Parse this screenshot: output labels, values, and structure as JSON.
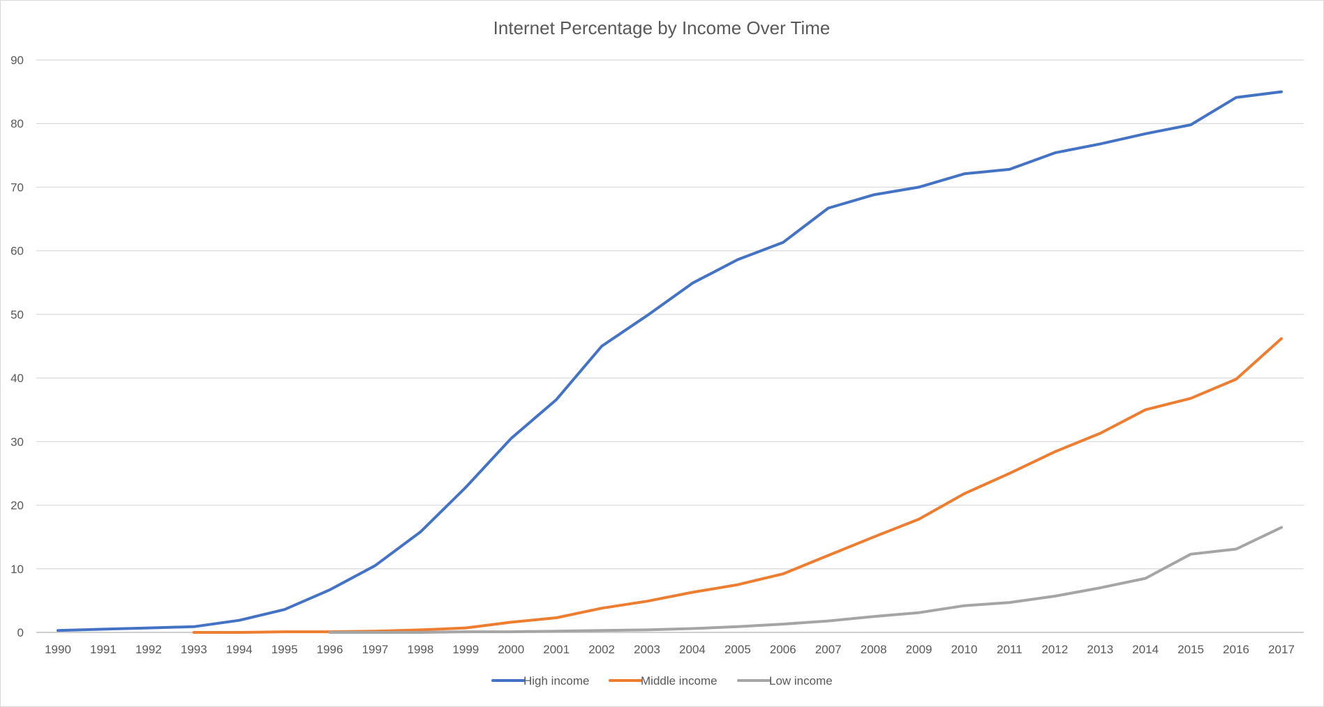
{
  "chart_data": {
    "type": "line",
    "title": "Internet Percentage by Income Over Time",
    "xlabel": "",
    "ylabel": "",
    "ylim": [
      0,
      90
    ],
    "yticks": [
      0,
      10,
      20,
      30,
      40,
      50,
      60,
      70,
      80,
      90
    ],
    "grid": true,
    "legend_position": "bottom",
    "categories": [
      "1990",
      "1991",
      "1992",
      "1993",
      "1994",
      "1995",
      "1996",
      "1997",
      "1998",
      "1999",
      "2000",
      "2001",
      "2002",
      "2003",
      "2004",
      "2005",
      "2006",
      "2007",
      "2008",
      "2009",
      "2010",
      "2011",
      "2012",
      "2013",
      "2014",
      "2015",
      "2016",
      "2017"
    ],
    "series": [
      {
        "name": "High income",
        "color": "#4472c4",
        "values": [
          0.3,
          0.5,
          0.7,
          0.9,
          1.9,
          3.6,
          6.7,
          10.5,
          15.8,
          22.8,
          30.5,
          36.6,
          45.0,
          49.8,
          54.9,
          58.6,
          61.3,
          66.7,
          68.8,
          70.0,
          72.1,
          72.8,
          75.4,
          76.8,
          78.4,
          79.8,
          84.1,
          85.0
        ]
      },
      {
        "name": "Middle income",
        "color": "#ed7d31",
        "values": [
          null,
          null,
          null,
          0.0,
          0.0,
          0.1,
          0.1,
          0.2,
          0.4,
          0.7,
          1.6,
          2.3,
          3.8,
          4.9,
          6.3,
          7.5,
          9.2,
          12.1,
          15.0,
          17.8,
          21.8,
          25.0,
          28.4,
          31.3,
          35.0,
          36.8,
          39.8,
          46.2
        ]
      },
      {
        "name": "Low income",
        "color": "#a5a5a5",
        "values": [
          null,
          null,
          null,
          null,
          null,
          null,
          0.0,
          0.0,
          0.0,
          0.1,
          0.1,
          0.2,
          0.3,
          0.4,
          0.6,
          0.9,
          1.3,
          1.8,
          2.5,
          3.1,
          4.2,
          4.7,
          5.7,
          7.0,
          8.5,
          12.3,
          13.1,
          16.5
        ]
      }
    ]
  }
}
